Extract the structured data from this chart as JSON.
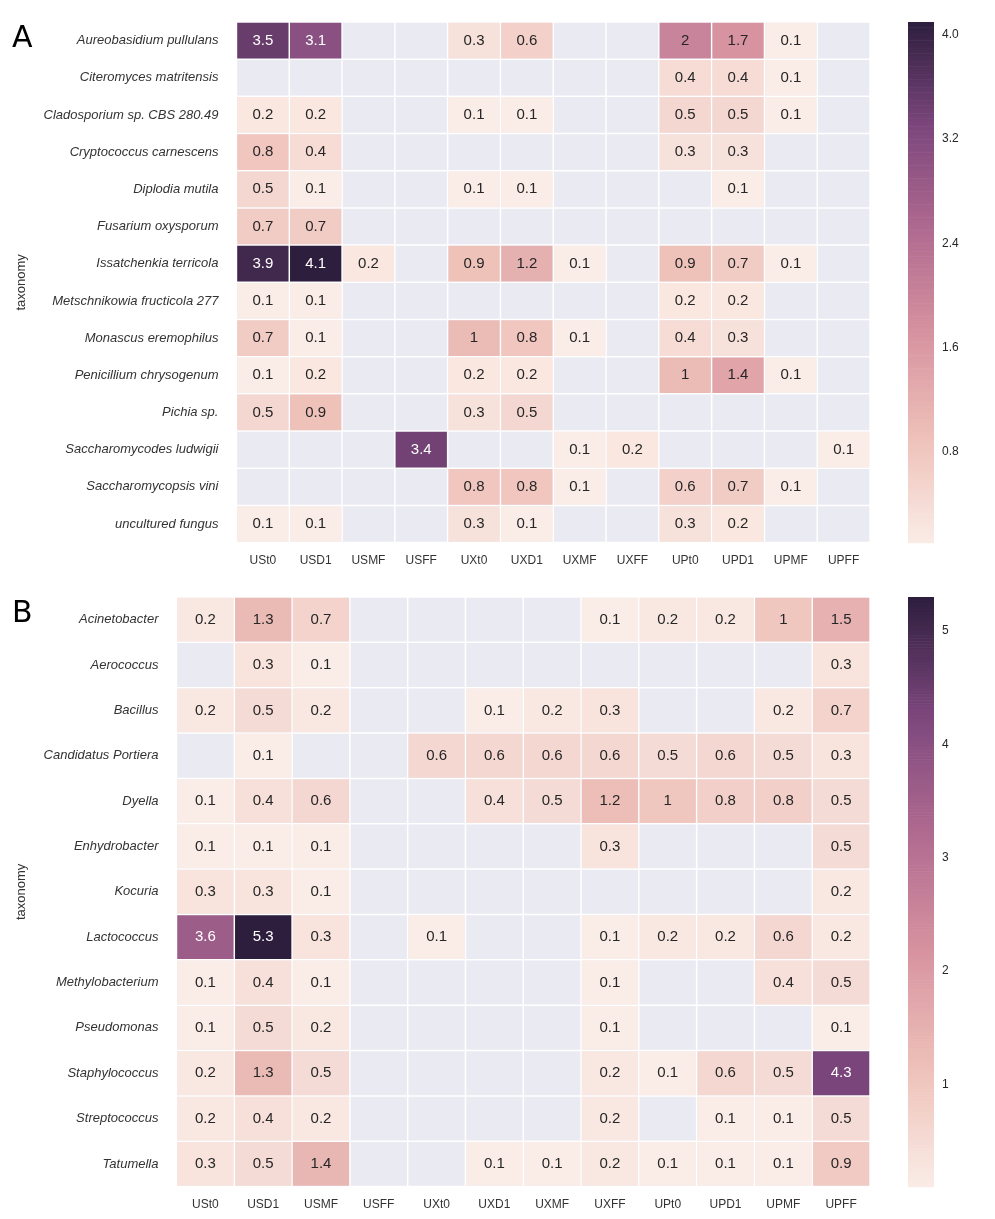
{
  "chart_data": [
    {
      "type": "heatmap",
      "ylabel": "taxonomy",
      "annotations": [
        "A"
      ],
      "data_labels": true,
      "categories": [
        "USt0",
        "USD1",
        "USMF",
        "USFF",
        "UXt0",
        "UXD1",
        "UXMF",
        "UXFF",
        "UPt0",
        "UPD1",
        "UPMF",
        "UPFF"
      ],
      "y_categories": [
        "Aureobasidium pullulans",
        "Citeromyces matritensis",
        "Cladosporium sp. CBS 280.49",
        "Cryptococcus carnescens",
        "Diplodia mutila",
        "Fusarium oxysporum",
        "Issatchenkia terricola",
        "Metschnikowia fructicola 277",
        "Monascus eremophilus",
        "Penicillium chrysogenum",
        "Pichia sp.",
        "Saccharomycodes ludwigii",
        "Saccharomycopsis vini",
        "uncultured fungus"
      ],
      "cells": [
        [
          3.5,
          3.1,
          null,
          null,
          0.3,
          0.6,
          null,
          null,
          2,
          1.7,
          0.1,
          null
        ],
        [
          null,
          null,
          null,
          null,
          null,
          null,
          null,
          null,
          0.4,
          0.4,
          0.1,
          null
        ],
        [
          0.2,
          0.2,
          null,
          null,
          0.1,
          0.1,
          null,
          null,
          0.5,
          0.5,
          0.1,
          null
        ],
        [
          0.8,
          0.4,
          null,
          null,
          null,
          null,
          null,
          null,
          0.3,
          0.3,
          null,
          null
        ],
        [
          0.5,
          0.1,
          null,
          null,
          0.1,
          0.1,
          null,
          null,
          null,
          0.1,
          null,
          null
        ],
        [
          0.7,
          0.7,
          null,
          null,
          null,
          null,
          null,
          null,
          null,
          null,
          null,
          null
        ],
        [
          3.9,
          4.1,
          0.2,
          null,
          0.9,
          1.2,
          0.1,
          null,
          0.9,
          0.7,
          0.1,
          null
        ],
        [
          0.1,
          0.1,
          null,
          null,
          null,
          null,
          null,
          null,
          0.2,
          0.2,
          null,
          null
        ],
        [
          0.7,
          0.1,
          null,
          null,
          1,
          0.8,
          0.1,
          null,
          0.4,
          0.3,
          null,
          null
        ],
        [
          0.1,
          0.2,
          null,
          null,
          0.2,
          0.2,
          null,
          null,
          1,
          1.4,
          0.1,
          null
        ],
        [
          0.5,
          0.9,
          null,
          null,
          0.3,
          0.5,
          null,
          null,
          null,
          null,
          null,
          null
        ],
        [
          null,
          null,
          null,
          3.4,
          null,
          null,
          0.1,
          0.2,
          null,
          null,
          null,
          0.1
        ],
        [
          null,
          null,
          null,
          null,
          0.8,
          0.8,
          0.1,
          null,
          0.6,
          0.7,
          0.1,
          null
        ],
        [
          0.1,
          0.1,
          null,
          null,
          0.3,
          0.1,
          null,
          null,
          0.3,
          0.2,
          null,
          null
        ]
      ],
      "clim": [
        0.1,
        4.1
      ],
      "cticks": [
        0.8,
        1.6,
        2.4,
        3.2,
        {
          "value": 4,
          "label": "4.0"
        }
      ]
    },
    {
      "type": "heatmap",
      "ylabel": "taxonomy",
      "annotations": [
        "B"
      ],
      "data_labels": true,
      "categories": [
        "USt0",
        "USD1",
        "USMF",
        "USFF",
        "UXt0",
        "UXD1",
        "UXMF",
        "UXFF",
        "UPt0",
        "UPD1",
        "UPMF",
        "UPFF"
      ],
      "y_categories": [
        "Acinetobacter",
        "Aerococcus",
        "Bacillus",
        "Candidatus Portiera",
        "Dyella",
        "Enhydrobacter",
        "Kocuria",
        "Lactococcus",
        "Methylobacterium",
        "Pseudomonas",
        "Staphylococcus",
        "Streptococcus",
        "Tatumella"
      ],
      "cells": [
        [
          0.2,
          1.3,
          0.7,
          null,
          null,
          null,
          null,
          0.1,
          0.2,
          0.2,
          1,
          1.5
        ],
        [
          null,
          0.3,
          0.1,
          null,
          null,
          null,
          null,
          null,
          null,
          null,
          null,
          0.3
        ],
        [
          0.2,
          0.5,
          0.2,
          null,
          null,
          0.1,
          0.2,
          0.3,
          null,
          null,
          0.2,
          0.7
        ],
        [
          null,
          0.1,
          null,
          null,
          0.6,
          0.6,
          0.6,
          0.6,
          0.5,
          0.6,
          0.5,
          0.3
        ],
        [
          0.1,
          0.4,
          0.6,
          null,
          null,
          0.4,
          0.5,
          1.2,
          1,
          0.8,
          0.8,
          0.5
        ],
        [
          0.1,
          0.1,
          0.1,
          null,
          null,
          null,
          null,
          0.3,
          null,
          null,
          null,
          0.5
        ],
        [
          0.3,
          0.3,
          0.1,
          null,
          null,
          null,
          null,
          null,
          null,
          null,
          null,
          0.2
        ],
        [
          3.6,
          5.3,
          0.3,
          null,
          0.1,
          null,
          null,
          0.1,
          0.2,
          0.2,
          0.6,
          0.2
        ],
        [
          0.1,
          0.4,
          0.1,
          null,
          null,
          null,
          null,
          0.1,
          null,
          null,
          0.4,
          0.5
        ],
        [
          0.1,
          0.5,
          0.2,
          null,
          null,
          null,
          null,
          0.1,
          null,
          null,
          null,
          0.1
        ],
        [
          0.2,
          1.3,
          0.5,
          null,
          null,
          null,
          null,
          0.2,
          0.1,
          0.6,
          0.5,
          4.3
        ],
        [
          0.2,
          0.4,
          0.2,
          null,
          null,
          null,
          null,
          0.2,
          null,
          0.1,
          0.1,
          0.5
        ],
        [
          0.3,
          0.5,
          1.4,
          null,
          null,
          0.1,
          0.1,
          0.2,
          0.1,
          0.1,
          0.1,
          0.9
        ]
      ],
      "clim": [
        0.1,
        5.3
      ],
      "cticks": [
        1,
        2,
        3,
        4,
        5
      ]
    }
  ]
}
